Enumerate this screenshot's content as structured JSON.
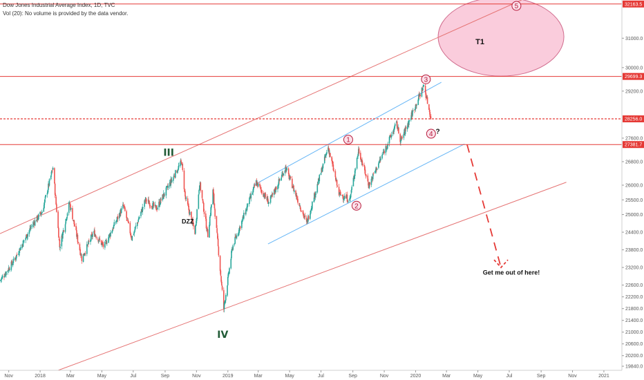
{
  "header": {
    "title": "Dow Jones Industrial Average Index, 1D, TVC",
    "volume_note": "Vol (20): No volume is provided by the data vendor."
  },
  "colors": {
    "channel": "#e57373",
    "inner_channel": "#64b5f6",
    "level": "#e53935",
    "badge": "#e53935",
    "up_candle": "#26a69a",
    "down_candle": "#ef5350",
    "target_zone": "#f8bbd0",
    "wave_circle": "#b71c3c",
    "wave_label": "#1f5a35",
    "dzz_label": "#e53935"
  },
  "chart_data": {
    "type": "candlestick",
    "instrument": "Dow Jones Industrial Average Index",
    "timeframe": "1D",
    "source": "TVC",
    "x_axis": {
      "tick_labels": [
        "Nov",
        "2018",
        "Mar",
        "May",
        "Jul",
        "Sep",
        "Nov",
        "2019",
        "Mar",
        "May",
        "Jul",
        "Sep",
        "Nov",
        "2020",
        "Mar",
        "May",
        "Jul",
        "Sep",
        "Nov",
        "2021"
      ],
      "range": [
        "2017-10-15",
        "2021-02-05"
      ]
    },
    "y_axis": {
      "tick_labels": [
        "31000.0",
        "30000.0",
        "29200.0",
        "27600.0",
        "26800.0",
        "26000.0",
        "25500.0",
        "25000.0",
        "24400.0",
        "23800.0",
        "23200.0",
        "22600.0",
        "22200.0",
        "21800.0",
        "21400.0",
        "21000.0",
        "20600.0",
        "20200.0",
        "19840.0"
      ],
      "ylim": [
        19700,
        32300
      ]
    },
    "price_levels": [
      {
        "label": "32163.5",
        "value": 32163.5
      },
      {
        "label": "29699.3",
        "value": 29699.3
      },
      {
        "label": "28256.0",
        "value": 28256.0,
        "style": "dashed"
      },
      {
        "label": "27381.7",
        "value": 27381.7
      }
    ],
    "price_path": [
      {
        "date": "2017-10-15",
        "price": 22750
      },
      {
        "date": "2017-11-10",
        "price": 23400
      },
      {
        "date": "2017-12-15",
        "price": 24600
      },
      {
        "date": "2018-01-05",
        "price": 25100
      },
      {
        "date": "2018-01-26",
        "price": 26600
      },
      {
        "date": "2018-02-08",
        "price": 23900
      },
      {
        "date": "2018-02-27",
        "price": 25400
      },
      {
        "date": "2018-03-23",
        "price": 23500
      },
      {
        "date": "2018-04-15",
        "price": 24400
      },
      {
        "date": "2018-05-05",
        "price": 23900
      },
      {
        "date": "2018-06-12",
        "price": 25300
      },
      {
        "date": "2018-06-28",
        "price": 24200
      },
      {
        "date": "2018-07-25",
        "price": 25500
      },
      {
        "date": "2018-08-15",
        "price": 25200
      },
      {
        "date": "2018-10-03",
        "price": 26800
      },
      {
        "date": "2018-10-10",
        "price": 25600
      },
      {
        "date": "2018-10-29",
        "price": 24400
      },
      {
        "date": "2018-11-07",
        "price": 26100
      },
      {
        "date": "2018-11-23",
        "price": 24300
      },
      {
        "date": "2018-12-03",
        "price": 25800
      },
      {
        "date": "2018-12-24",
        "price": 21800
      },
      {
        "date": "2019-01-10",
        "price": 23900
      },
      {
        "date": "2019-02-25",
        "price": 26100
      },
      {
        "date": "2019-03-22",
        "price": 25400
      },
      {
        "date": "2019-04-23",
        "price": 26600
      },
      {
        "date": "2019-06-03",
        "price": 24700
      },
      {
        "date": "2019-07-15",
        "price": 27300
      },
      {
        "date": "2019-08-05",
        "price": 25700
      },
      {
        "date": "2019-08-26",
        "price": 25500
      },
      {
        "date": "2019-09-12",
        "price": 27200
      },
      {
        "date": "2019-10-02",
        "price": 26000
      },
      {
        "date": "2019-11-25",
        "price": 28100
      },
      {
        "date": "2019-12-03",
        "price": 27500
      },
      {
        "date": "2020-01-17",
        "price": 29400
      },
      {
        "date": "2020-01-31",
        "price": 28256
      }
    ],
    "trend_lines": [
      {
        "name": "upper-channel",
        "color": "red",
        "from": {
          "date": "2017-10-15",
          "price": 24350
        },
        "to": {
          "date": "2020-07-25",
          "price": 32300
        }
      },
      {
        "name": "lower-channel",
        "color": "red",
        "from": {
          "date": "2018-02-05",
          "price": 19700
        },
        "to": {
          "date": "2020-10-20",
          "price": 26100
        }
      },
      {
        "name": "inner-upper",
        "color": "blue",
        "from": {
          "date": "2019-02-20",
          "price": 26000
        },
        "to": {
          "date": "2020-02-20",
          "price": 29500
        }
      },
      {
        "name": "inner-lower",
        "color": "blue",
        "from": {
          "date": "2019-03-20",
          "price": 24000
        },
        "to": {
          "date": "2020-04-05",
          "price": 27400
        }
      },
      {
        "name": "projection",
        "color": "red",
        "style": "dashed",
        "from": {
          "date": "2020-04-10",
          "price": 27381.7
        },
        "to": {
          "date": "2020-06-15",
          "price": 23200
        }
      }
    ],
    "target_zone": {
      "label": "T1",
      "center": {
        "date": "2020-06-15",
        "price": 31050
      },
      "price_span": [
        29700,
        32380
      ]
    },
    "wave_labels": [
      {
        "label": "III",
        "style": "plain",
        "date": "2018-09-08",
        "price": 27000
      },
      {
        "label": "IV",
        "style": "plain",
        "date": "2018-12-22",
        "price": 20800
      },
      {
        "label": "1",
        "style": "circled",
        "date": "2019-08-23",
        "price": 27550
      },
      {
        "label": "2",
        "style": "circled",
        "date": "2019-09-08",
        "price": 25300
      },
      {
        "label": "3",
        "style": "circled",
        "date": "2020-01-21",
        "price": 29600
      },
      {
        "label": "4",
        "style": "circled",
        "date": "2020-01-31",
        "price": 27750
      },
      {
        "label": "5",
        "style": "circled",
        "date": "2020-07-15",
        "price": 32100
      }
    ],
    "annotations": [
      {
        "text": "DZZ",
        "date": "2018-10-15",
        "price": 24700
      },
      {
        "text": "?",
        "date": "2020-02-09",
        "price": 27750
      },
      {
        "text": "T1",
        "date": "2020-05-05",
        "price": 30800
      },
      {
        "text": "Get me out of here!",
        "date": "2020-07-05",
        "price": 22950
      }
    ]
  }
}
